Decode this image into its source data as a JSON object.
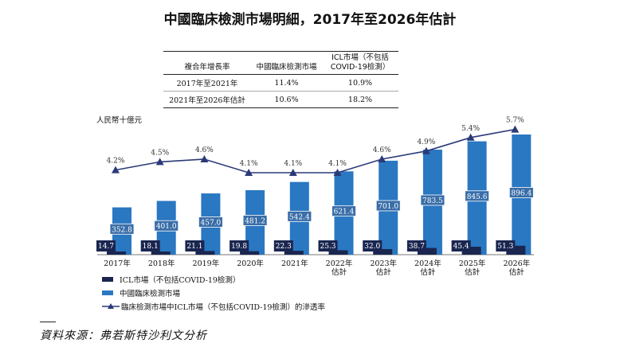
{
  "title": "中國臨床檢測市場明細，2017年至2026年估計",
  "cagr_table": {
    "headers": [
      "複合年增長率",
      "中國臨床檢測市場",
      "ICL市場（不包括COVID-19檢測）"
    ],
    "rows": [
      [
        "2017年至2021年",
        "11.4%",
        "10.9%"
      ],
      [
        "2021年至2026年估計",
        "10.6%",
        "18.2%"
      ]
    ]
  },
  "unit_label": "人民幣十億元",
  "legend": {
    "icl": "ICL市場（不包括COVID-19檢測）",
    "total": "中國臨床檢測市場",
    "pen": "臨床檢測市場中ICL市場（不包括COVID-19檢測）的滲透率"
  },
  "source": "資料來源：弗若斯特沙利文分析",
  "colors": {
    "total": "#2a77c2",
    "icl": "#1a2650",
    "line": "#2a3a78",
    "label_box": "#3a6ea8"
  },
  "chart_data": {
    "type": "bar",
    "categories": [
      "2017年",
      "2018年",
      "2019年",
      "2020年",
      "2021年",
      "2022年估計",
      "2023年估計",
      "2024年估計",
      "2025年估計",
      "2026年估計"
    ],
    "category_lines": [
      [
        "2017年"
      ],
      [
        "2018年"
      ],
      [
        "2019年"
      ],
      [
        "2020年"
      ],
      [
        "2021年"
      ],
      [
        "2022年",
        "估計"
      ],
      [
        "2023年",
        "估計"
      ],
      [
        "2024年",
        "估計"
      ],
      [
        "2025年",
        "估計"
      ],
      [
        "2026年",
        "估計"
      ]
    ],
    "series": [
      {
        "name": "中國臨床檢測市場",
        "values": [
          352.8,
          401.0,
          457.0,
          481.2,
          542.4,
          621.4,
          701.0,
          783.5,
          845.6,
          896.4
        ]
      },
      {
        "name": "ICL市場（不包括COVID-19檢測）",
        "values": [
          14.7,
          18.1,
          21.1,
          19.8,
          22.3,
          25.3,
          32.0,
          38.7,
          45.4,
          51.3
        ]
      }
    ],
    "penetration": {
      "name": "臨床檢測市場中ICL市場（不包括COVID-19檢測）的滲透率",
      "values": [
        4.2,
        4.5,
        4.6,
        4.1,
        4.1,
        4.1,
        4.6,
        4.9,
        5.4,
        5.7
      ],
      "labels": [
        "4.2%",
        "4.5%",
        "4.6%",
        "4.1%",
        "4.1%",
        "4.1%",
        "4.6%",
        "4.9%",
        "5.4%",
        "5.7%"
      ]
    },
    "value_labels_total": [
      "352.8",
      "401.0",
      "457.0",
      "481.2",
      "542.4",
      "621.4",
      "701.0",
      "783.5",
      "845.6",
      "896.4"
    ],
    "value_labels_icl": [
      "14.7",
      "18.1",
      "21.1",
      "19.8",
      "22.3",
      "25.3",
      "32.0",
      "38.7",
      "45.4",
      "51.3"
    ],
    "ylabel": "人民幣十億元"
  }
}
